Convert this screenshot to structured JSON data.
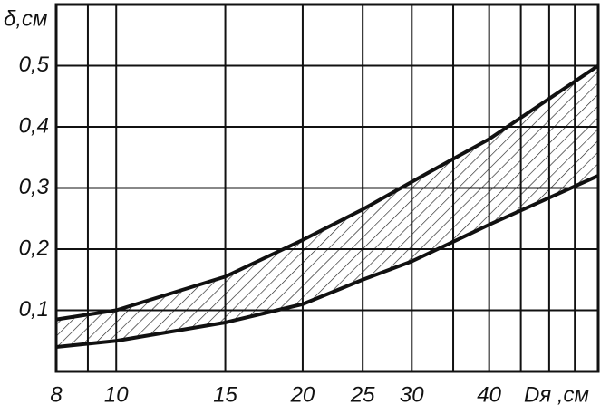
{
  "chart_data": {
    "type": "line",
    "y_label": "δ,см",
    "x_label": "Dя ,см",
    "x_scale": "log",
    "xlim": [
      8,
      60
    ],
    "ylim": [
      0,
      0.6
    ],
    "xticks": [
      8,
      10,
      15,
      20,
      25,
      30,
      40
    ],
    "x_minor_grid": [
      9,
      35,
      45,
      50,
      55
    ],
    "yticks": [
      {
        "value": 0.1,
        "label": "0,1"
      },
      {
        "value": 0.2,
        "label": "0,2"
      },
      {
        "value": 0.3,
        "label": "0,3"
      },
      {
        "value": 0.4,
        "label": "0,4"
      },
      {
        "value": 0.5,
        "label": "0,5"
      }
    ],
    "grid": true,
    "fill_between": true,
    "x": [
      8,
      10,
      15,
      20,
      25,
      30,
      40,
      60
    ],
    "series": [
      {
        "color": "#111111",
        "values": [
          0.085,
          0.1,
          0.155,
          0.215,
          0.265,
          0.31,
          0.38,
          0.5
        ]
      },
      {
        "color": "#111111",
        "values": [
          0.04,
          0.05,
          0.08,
          0.11,
          0.15,
          0.18,
          0.24,
          0.32
        ]
      }
    ]
  }
}
